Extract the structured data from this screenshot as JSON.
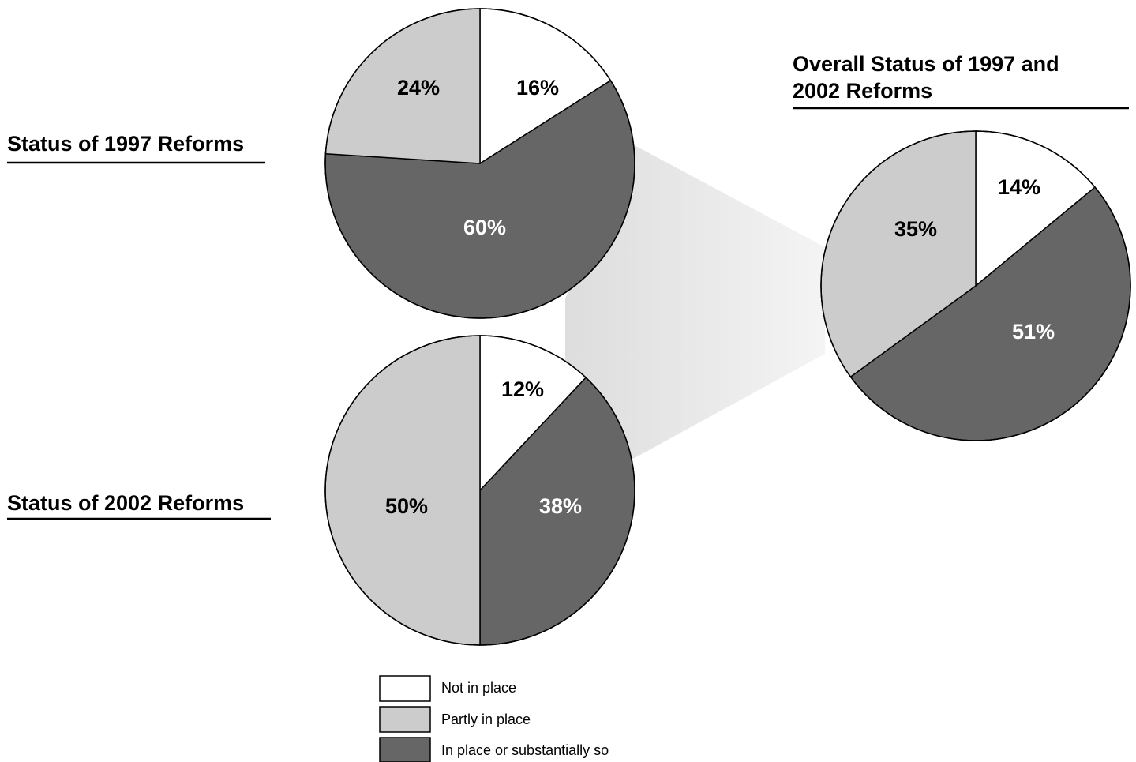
{
  "colors": {
    "not_in_place": "#ffffff",
    "partly_in_place": "#cccccc",
    "in_place": "#666666",
    "connector": "#e6e6e6",
    "outline": "#000000"
  },
  "legend": {
    "items": [
      {
        "label": "Not in place",
        "color_key": "not_in_place"
      },
      {
        "label": "Partly in place",
        "color_key": "partly_in_place"
      },
      {
        "label": "In place or substantially so",
        "color_key": "in_place"
      }
    ]
  },
  "chart_data": [
    {
      "type": "pie",
      "title": "Status of 1997 Reforms",
      "slices": [
        {
          "category": "Not in place",
          "value": 16,
          "label": "16%",
          "color_key": "not_in_place"
        },
        {
          "category": "In place or substantially so",
          "value": 60,
          "label": "60%",
          "color_key": "in_place"
        },
        {
          "category": "Partly in place",
          "value": 24,
          "label": "24%",
          "color_key": "partly_in_place"
        }
      ]
    },
    {
      "type": "pie",
      "title": "Status of 2002 Reforms",
      "slices": [
        {
          "category": "Not in place",
          "value": 12,
          "label": "12%",
          "color_key": "not_in_place"
        },
        {
          "category": "In place or substantially so",
          "value": 38,
          "label": "38%",
          "color_key": "in_place"
        },
        {
          "category": "Partly in place",
          "value": 50,
          "label": "50%",
          "color_key": "partly_in_place"
        }
      ]
    },
    {
      "type": "pie",
      "title": "Overall Status of 1997 and 2002 Reforms",
      "title_lines": [
        "Overall Status of 1997 and",
        "2002 Reforms"
      ],
      "slices": [
        {
          "category": "Not in place",
          "value": 14,
          "label": "14%",
          "color_key": "not_in_place"
        },
        {
          "category": "In place or substantially so",
          "value": 51,
          "label": "51%",
          "color_key": "in_place"
        },
        {
          "category": "Partly in place",
          "value": 35,
          "label": "35%",
          "color_key": "partly_in_place"
        }
      ]
    }
  ]
}
